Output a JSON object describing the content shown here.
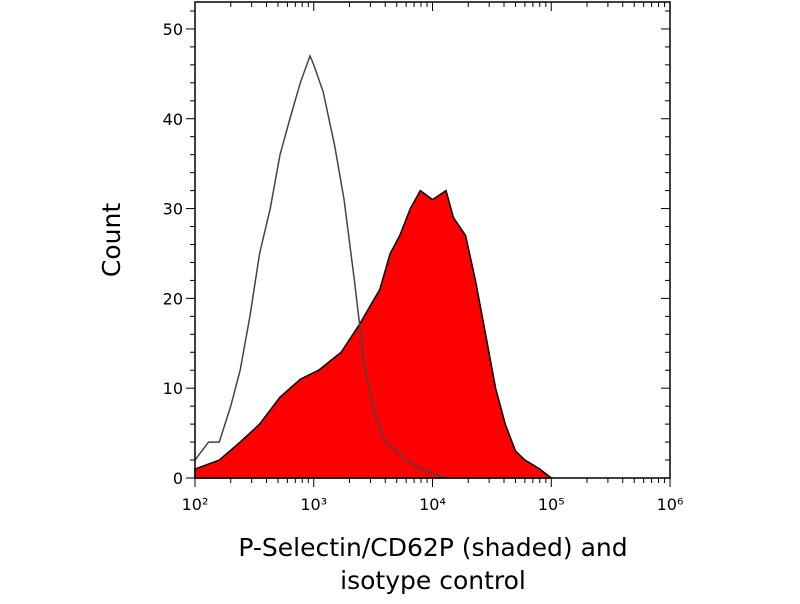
{
  "chart_data": {
    "type": "area",
    "xlabel": [
      "P-Selectin/CD62P (shaded) and",
      "isotype control"
    ],
    "ylabel": "Count",
    "xscale": "log",
    "xlim": [
      100,
      1000000
    ],
    "ylim": [
      0,
      53
    ],
    "xticks": [
      {
        "value": 100,
        "label": "10²"
      },
      {
        "value": 1000,
        "label": "10³"
      },
      {
        "value": 10000,
        "label": "10⁴"
      },
      {
        "value": 100000,
        "label": "10⁵"
      },
      {
        "value": 1000000,
        "label": "10⁶"
      }
    ],
    "xminorticks": [
      200,
      300,
      400,
      500,
      600,
      700,
      800,
      900,
      2000,
      3000,
      4000,
      5000,
      6000,
      7000,
      8000,
      9000,
      20000,
      30000,
      40000,
      50000,
      60000,
      70000,
      80000,
      90000,
      200000,
      300000,
      400000,
      500000,
      600000,
      700000,
      800000,
      900000
    ],
    "yticks": [
      0,
      10,
      20,
      30,
      40,
      50
    ],
    "yminorticks": [
      2,
      4,
      6,
      8,
      12,
      14,
      16,
      18,
      22,
      24,
      26,
      28,
      32,
      34,
      36,
      38,
      42,
      44,
      46,
      48,
      52
    ],
    "series": [
      {
        "color": "#ff0000",
        "stroke": "#000000",
        "filled": true,
        "x": [
          100,
          160,
          240,
          350,
          520,
          770,
          1100,
          1700,
          2400,
          3600,
          4400,
          5300,
          6500,
          7900,
          10000,
          13000,
          15000,
          19000,
          23000,
          28000,
          34000,
          41000,
          50000,
          60000,
          80000,
          100000
        ],
        "values": [
          1,
          2,
          4,
          6,
          9,
          11,
          12,
          14,
          17,
          21,
          25,
          27,
          30,
          32,
          31,
          32,
          29,
          27,
          22,
          16,
          10,
          6,
          3,
          2,
          1,
          0
        ]
      },
      {
        "color": "#444444",
        "filled": false,
        "x": [
          100,
          130,
          160,
          200,
          240,
          290,
          350,
          430,
          520,
          630,
          770,
          930,
          1000,
          1200,
          1500,
          1800,
          2200,
          2700,
          3300,
          4000,
          5000,
          6000,
          8000,
          10000,
          13000
        ],
        "values": [
          2,
          4,
          4,
          8,
          12,
          18,
          25,
          30,
          36,
          40,
          44,
          47,
          46,
          43,
          37,
          31,
          22,
          12,
          7,
          4,
          3,
          2,
          1,
          0.5,
          0
        ]
      }
    ]
  }
}
